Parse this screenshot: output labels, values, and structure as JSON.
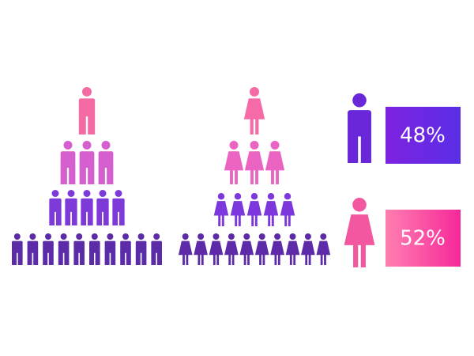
{
  "stats": [
    {
      "label": "48%"
    },
    {
      "label": "52%"
    }
  ]
}
